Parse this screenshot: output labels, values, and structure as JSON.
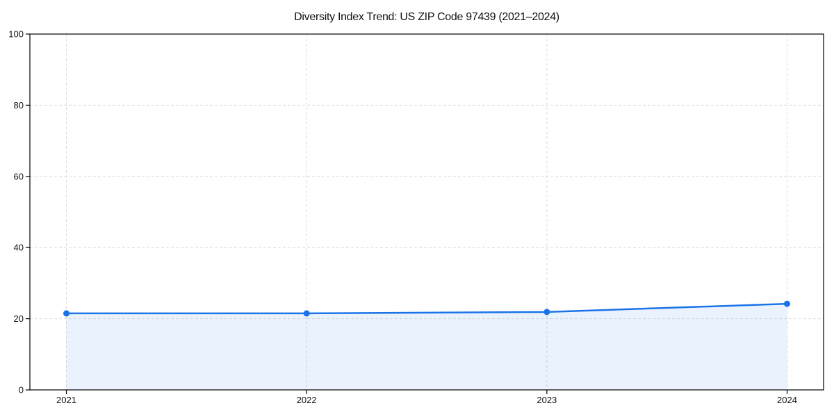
{
  "chart_data": {
    "type": "line",
    "title": "Diversity Index Trend: US ZIP Code 97439 (2021–2024)",
    "x": [
      "2021",
      "2022",
      "2023",
      "2024"
    ],
    "series": [
      {
        "name": "Diversity Index",
        "values": [
          21.5,
          21.5,
          21.9,
          24.2
        ]
      }
    ],
    "xlabel": "",
    "ylabel": "",
    "ylim": [
      0,
      100
    ],
    "yticks": [
      0,
      20,
      40,
      60,
      80,
      100
    ],
    "grid": true,
    "grid_style": "dashed",
    "legend": false,
    "area_fill": true,
    "marker": "circle",
    "colors": {
      "line": "#1a73e8",
      "marker": "#1a73e8",
      "area": "#1a73e8",
      "area_opacity": 0.09,
      "grid": "#dcdcdc",
      "axis": "#000000",
      "text": "#111111",
      "background": "#ffffff"
    }
  }
}
